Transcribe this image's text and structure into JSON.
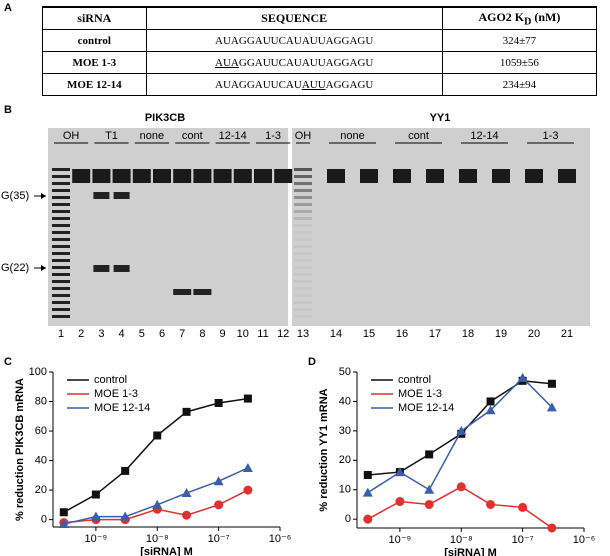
{
  "panel_labels": [
    "A",
    "B",
    "C",
    "D"
  ],
  "table": {
    "header": [
      "siRNA",
      "SEQUENCE",
      {
        "text": "AGO2 K",
        "sub": "D",
        "after": " (nM)"
      }
    ],
    "rows": [
      {
        "name": "control",
        "sequence": [
          {
            "text": "AUAGGAUUCAUAUUAGGAGU"
          }
        ],
        "kd": "324±77"
      },
      {
        "name": "MOE 1-3",
        "sequence": [
          {
            "text": "AUA",
            "underline": true
          },
          {
            "text": "GGAUUCAUAUUAGGAGU"
          }
        ],
        "kd": "1059±56"
      },
      {
        "name": "MOE 12-14",
        "sequence": [
          {
            "text": "AUAGGAUUCAU"
          },
          {
            "text": "AUU",
            "underline": true
          },
          {
            "text": "AGGAGU"
          }
        ],
        "kd": "234±94"
      }
    ]
  },
  "gel": {
    "groups": [
      {
        "title": "PIK3CB",
        "lanes": [
          "OH",
          "T1",
          "none",
          "cont",
          "12-14",
          "1-3"
        ]
      },
      {
        "title": "YY1",
        "lanes": [
          "OH",
          "none",
          "cont",
          "12-14",
          "1-3"
        ]
      }
    ],
    "markers": [
      "G(35)",
      "G(22)"
    ],
    "lane_numbers": [
      1,
      2,
      3,
      4,
      5,
      6,
      7,
      8,
      9,
      10,
      11,
      12,
      13,
      14,
      15,
      16,
      17,
      18,
      19,
      20,
      21
    ]
  },
  "chart_data": [
    {
      "type": "line",
      "ylabel": "% reduction PIK3CB mRNA",
      "xlabel": "[siRNA] M",
      "log_x": true,
      "legend": "upper left",
      "x": [
        3e-10,
        1e-09,
        3e-09,
        1e-08,
        3e-08,
        1e-07,
        3e-07
      ],
      "series": [
        {
          "name": "control",
          "color": "#111111",
          "marker": "square",
          "values": [
            5,
            17,
            33,
            57,
            73,
            79,
            82
          ]
        },
        {
          "name": "MOE 1-3",
          "color": "#e03030",
          "marker": "circle",
          "values": [
            -2,
            0,
            0,
            7,
            3,
            10,
            20
          ]
        },
        {
          "name": "MOE 12-14",
          "color": "#3a5fa8",
          "marker": "triangle",
          "values": [
            -3,
            2,
            2,
            10,
            18,
            26,
            35
          ]
        }
      ],
      "xlim": [
        2e-10,
        1e-06
      ],
      "xticks": [
        {
          "value": 1e-09,
          "label": "10⁻⁹"
        },
        {
          "value": 1e-08,
          "label": "10⁻⁸"
        },
        {
          "value": 1e-07,
          "label": "10⁻⁷"
        },
        {
          "value": 1e-06,
          "label": "10⁻⁶"
        }
      ],
      "ylim": [
        -5,
        100
      ],
      "yticks": [
        0,
        20,
        40,
        60,
        80,
        100
      ]
    },
    {
      "type": "line",
      "ylabel": "% reduction YY1 mRNA",
      "xlabel": "[siRNA] M",
      "log_x": true,
      "legend": "upper left",
      "x": [
        3e-10,
        1e-09,
        3e-09,
        1e-08,
        3e-08,
        1e-07,
        3e-07
      ],
      "series": [
        {
          "name": "control",
          "color": "#111111",
          "marker": "square",
          "values": [
            15,
            16,
            22,
            29,
            40,
            47,
            46
          ]
        },
        {
          "name": "MOE 1-3",
          "color": "#e03030",
          "marker": "circle",
          "values": [
            0,
            6,
            5,
            11,
            5,
            4,
            -3
          ]
        },
        {
          "name": "MOE 12-14",
          "color": "#3a5fa8",
          "marker": "triangle",
          "values": [
            9,
            16,
            10,
            30,
            37,
            48,
            38
          ]
        }
      ],
      "xlim": [
        2e-10,
        1e-06
      ],
      "xticks": [
        {
          "value": 1e-09,
          "label": "10⁻⁹"
        },
        {
          "value": 1e-08,
          "label": "10⁻⁸"
        },
        {
          "value": 1e-07,
          "label": "10⁻⁷"
        },
        {
          "value": 1e-06,
          "label": "10⁻⁶"
        }
      ],
      "ylim": [
        -3,
        50
      ],
      "yticks": [
        0,
        10,
        20,
        30,
        40,
        50
      ]
    }
  ]
}
